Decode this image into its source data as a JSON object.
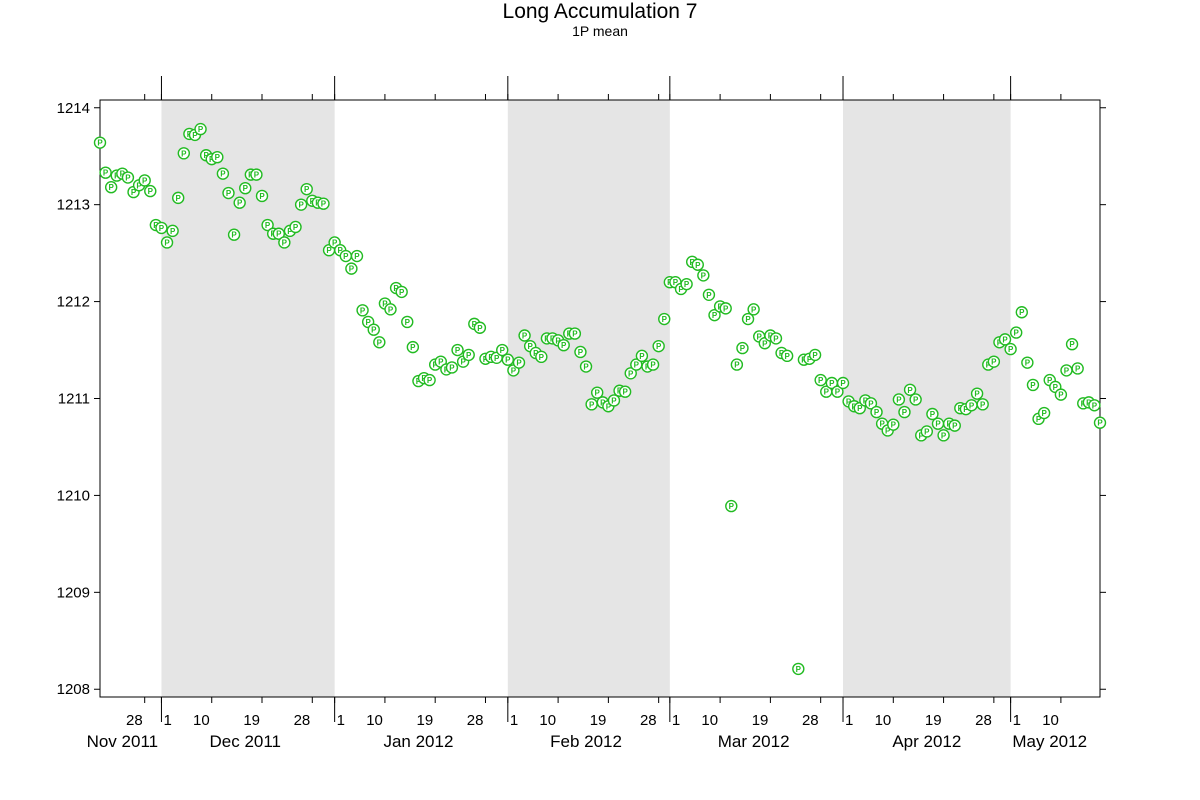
{
  "chart_data": {
    "type": "scatter",
    "title": "Long Accumulation 7",
    "subtitle": "1P mean",
    "xlabel": "",
    "ylabel": "",
    "xlim": [
      "2011-11-20",
      "2012-05-17"
    ],
    "ylim": [
      1207.92,
      1214.08
    ],
    "yticks": [
      1208,
      1209,
      1210,
      1211,
      1212,
      1213,
      1214
    ],
    "x_day_ticks": [
      "2011-11-28",
      "2011-12-01",
      "2011-12-10",
      "2011-12-19",
      "2011-12-28",
      "2012-01-01",
      "2012-01-10",
      "2012-01-19",
      "2012-01-28",
      "2012-02-01",
      "2012-02-10",
      "2012-02-19",
      "2012-02-28",
      "2012-03-01",
      "2012-03-10",
      "2012-03-19",
      "2012-03-28",
      "2012-04-01",
      "2012-04-10",
      "2012-04-19",
      "2012-04-28",
      "2012-05-01",
      "2012-05-10"
    ],
    "month_labels": [
      {
        "date": "2011-11-24",
        "label": "Nov 2011"
      },
      {
        "date": "2011-12-16",
        "label": "Dec 2011"
      },
      {
        "date": "2012-01-16",
        "label": "Jan 2012"
      },
      {
        "date": "2012-02-15",
        "label": "Feb 2012"
      },
      {
        "date": "2012-03-16",
        "label": "Mar 2012"
      },
      {
        "date": "2012-04-16",
        "label": "Apr 2012"
      },
      {
        "date": "2012-05-08",
        "label": "May 2012"
      }
    ],
    "shaded_months": [
      [
        "2011-12-01",
        "2012-01-01"
      ],
      [
        "2012-02-01",
        "2012-03-01"
      ],
      [
        "2012-04-01",
        "2012-05-01"
      ]
    ],
    "grid": false,
    "colors": {
      "marker": "#22bb22",
      "shade": "#e5e5e5",
      "axis": "#000000"
    },
    "series": [
      {
        "marker_label": "P",
        "points": [
          [
            "2011-11-20",
            1213.64
          ],
          [
            "2011-11-21",
            1213.33
          ],
          [
            "2011-11-22",
            1213.18
          ],
          [
            "2011-11-23",
            1213.3
          ],
          [
            "2011-11-24",
            1213.32
          ],
          [
            "2011-11-25",
            1213.28
          ],
          [
            "2011-11-26",
            1213.13
          ],
          [
            "2011-11-27",
            1213.2
          ],
          [
            "2011-11-28",
            1213.25
          ],
          [
            "2011-11-29",
            1213.14
          ],
          [
            "2011-11-30",
            1212.79
          ],
          [
            "2011-12-01",
            1212.76
          ],
          [
            "2011-12-02",
            1212.61
          ],
          [
            "2011-12-03",
            1212.73
          ],
          [
            "2011-12-04",
            1213.07
          ],
          [
            "2011-12-05",
            1213.53
          ],
          [
            "2011-12-06",
            1213.73
          ],
          [
            "2011-12-07",
            1213.72
          ],
          [
            "2011-12-08",
            1213.78
          ],
          [
            "2011-12-09",
            1213.51
          ],
          [
            "2011-12-10",
            1213.47
          ],
          [
            "2011-12-11",
            1213.49
          ],
          [
            "2011-12-12",
            1213.32
          ],
          [
            "2011-12-13",
            1213.12
          ],
          [
            "2011-12-14",
            1212.69
          ],
          [
            "2011-12-15",
            1213.02
          ],
          [
            "2011-12-16",
            1213.17
          ],
          [
            "2011-12-17",
            1213.31
          ],
          [
            "2011-12-18",
            1213.31
          ],
          [
            "2011-12-19",
            1213.09
          ],
          [
            "2011-12-20",
            1212.79
          ],
          [
            "2011-12-21",
            1212.7
          ],
          [
            "2011-12-22",
            1212.7
          ],
          [
            "2011-12-23",
            1212.61
          ],
          [
            "2011-12-24",
            1212.73
          ],
          [
            "2011-12-25",
            1212.77
          ],
          [
            "2011-12-26",
            1213.0
          ],
          [
            "2011-12-27",
            1213.16
          ],
          [
            "2011-12-28",
            1213.04
          ],
          [
            "2011-12-29",
            1213.02
          ],
          [
            "2011-12-30",
            1213.01
          ],
          [
            "2011-12-31",
            1212.53
          ],
          [
            "2012-01-01",
            1212.61
          ],
          [
            "2012-01-02",
            1212.53
          ],
          [
            "2012-01-03",
            1212.47
          ],
          [
            "2012-01-04",
            1212.34
          ],
          [
            "2012-01-05",
            1212.47
          ],
          [
            "2012-01-06",
            1211.91
          ],
          [
            "2012-01-07",
            1211.79
          ],
          [
            "2012-01-08",
            1211.71
          ],
          [
            "2012-01-09",
            1211.58
          ],
          [
            "2012-01-10",
            1211.98
          ],
          [
            "2012-01-11",
            1211.92
          ],
          [
            "2012-01-12",
            1212.14
          ],
          [
            "2012-01-13",
            1212.1
          ],
          [
            "2012-01-14",
            1211.79
          ],
          [
            "2012-01-15",
            1211.53
          ],
          [
            "2012-01-16",
            1211.18
          ],
          [
            "2012-01-17",
            1211.21
          ],
          [
            "2012-01-18",
            1211.19
          ],
          [
            "2012-01-19",
            1211.35
          ],
          [
            "2012-01-20",
            1211.38
          ],
          [
            "2012-01-21",
            1211.3
          ],
          [
            "2012-01-22",
            1211.32
          ],
          [
            "2012-01-23",
            1211.5
          ],
          [
            "2012-01-24",
            1211.38
          ],
          [
            "2012-01-25",
            1211.45
          ],
          [
            "2012-01-26",
            1211.77
          ],
          [
            "2012-01-27",
            1211.73
          ],
          [
            "2012-01-28",
            1211.41
          ],
          [
            "2012-01-29",
            1211.43
          ],
          [
            "2012-01-30",
            1211.42
          ],
          [
            "2012-01-31",
            1211.5
          ],
          [
            "2012-02-01",
            1211.4
          ],
          [
            "2012-02-02",
            1211.29
          ],
          [
            "2012-02-03",
            1211.37
          ],
          [
            "2012-02-04",
            1211.65
          ],
          [
            "2012-02-05",
            1211.54
          ],
          [
            "2012-02-06",
            1211.47
          ],
          [
            "2012-02-07",
            1211.43
          ],
          [
            "2012-02-08",
            1211.62
          ],
          [
            "2012-02-09",
            1211.62
          ],
          [
            "2012-02-10",
            1211.6
          ],
          [
            "2012-02-11",
            1211.55
          ],
          [
            "2012-02-12",
            1211.67
          ],
          [
            "2012-02-13",
            1211.67
          ],
          [
            "2012-02-14",
            1211.48
          ],
          [
            "2012-02-15",
            1211.33
          ],
          [
            "2012-02-16",
            1210.94
          ],
          [
            "2012-02-17",
            1211.06
          ],
          [
            "2012-02-18",
            1210.96
          ],
          [
            "2012-02-19",
            1210.92
          ],
          [
            "2012-02-20",
            1210.98
          ],
          [
            "2012-02-21",
            1211.08
          ],
          [
            "2012-02-22",
            1211.07
          ],
          [
            "2012-02-23",
            1211.26
          ],
          [
            "2012-02-24",
            1211.35
          ],
          [
            "2012-02-25",
            1211.44
          ],
          [
            "2012-02-26",
            1211.33
          ],
          [
            "2012-02-27",
            1211.35
          ],
          [
            "2012-02-28",
            1211.54
          ],
          [
            "2012-02-29",
            1211.82
          ],
          [
            "2012-03-01",
            1212.2
          ],
          [
            "2012-03-02",
            1212.2
          ],
          [
            "2012-03-03",
            1212.13
          ],
          [
            "2012-03-04",
            1212.18
          ],
          [
            "2012-03-05",
            1212.41
          ],
          [
            "2012-03-06",
            1212.38
          ],
          [
            "2012-03-07",
            1212.27
          ],
          [
            "2012-03-08",
            1212.07
          ],
          [
            "2012-03-09",
            1211.86
          ],
          [
            "2012-03-10",
            1211.95
          ],
          [
            "2012-03-11",
            1211.93
          ],
          [
            "2012-03-12",
            1209.89
          ],
          [
            "2012-03-13",
            1211.35
          ],
          [
            "2012-03-14",
            1211.52
          ],
          [
            "2012-03-15",
            1211.82
          ],
          [
            "2012-03-16",
            1211.92
          ],
          [
            "2012-03-17",
            1211.64
          ],
          [
            "2012-03-18",
            1211.57
          ],
          [
            "2012-03-19",
            1211.65
          ],
          [
            "2012-03-20",
            1211.62
          ],
          [
            "2012-03-21",
            1211.47
          ],
          [
            "2012-03-22",
            1211.44
          ],
          [
            "2012-03-24",
            1208.21
          ],
          [
            "2012-03-25",
            1211.4
          ],
          [
            "2012-03-26",
            1211.41
          ],
          [
            "2012-03-27",
            1211.45
          ],
          [
            "2012-03-28",
            1211.19
          ],
          [
            "2012-03-29",
            1211.07
          ],
          [
            "2012-03-30",
            1211.16
          ],
          [
            "2012-03-31",
            1211.07
          ],
          [
            "2012-04-01",
            1211.16
          ],
          [
            "2012-04-02",
            1210.97
          ],
          [
            "2012-04-03",
            1210.92
          ],
          [
            "2012-04-04",
            1210.9
          ],
          [
            "2012-04-05",
            1210.98
          ],
          [
            "2012-04-06",
            1210.95
          ],
          [
            "2012-04-07",
            1210.86
          ],
          [
            "2012-04-08",
            1210.74
          ],
          [
            "2012-04-09",
            1210.67
          ],
          [
            "2012-04-10",
            1210.73
          ],
          [
            "2012-04-11",
            1210.99
          ],
          [
            "2012-04-12",
            1210.86
          ],
          [
            "2012-04-13",
            1211.09
          ],
          [
            "2012-04-14",
            1210.99
          ],
          [
            "2012-04-15",
            1210.62
          ],
          [
            "2012-04-16",
            1210.66
          ],
          [
            "2012-04-17",
            1210.84
          ],
          [
            "2012-04-18",
            1210.74
          ],
          [
            "2012-04-19",
            1210.62
          ],
          [
            "2012-04-20",
            1210.74
          ],
          [
            "2012-04-21",
            1210.72
          ],
          [
            "2012-04-22",
            1210.9
          ],
          [
            "2012-04-23",
            1210.89
          ],
          [
            "2012-04-24",
            1210.93
          ],
          [
            "2012-04-25",
            1211.05
          ],
          [
            "2012-04-26",
            1210.94
          ],
          [
            "2012-04-27",
            1211.35
          ],
          [
            "2012-04-28",
            1211.38
          ],
          [
            "2012-04-29",
            1211.58
          ],
          [
            "2012-04-30",
            1211.61
          ],
          [
            "2012-05-01",
            1211.51
          ],
          [
            "2012-05-02",
            1211.68
          ],
          [
            "2012-05-03",
            1211.89
          ],
          [
            "2012-05-04",
            1211.37
          ],
          [
            "2012-05-05",
            1211.14
          ],
          [
            "2012-05-06",
            1210.79
          ],
          [
            "2012-05-07",
            1210.85
          ],
          [
            "2012-05-08",
            1211.19
          ],
          [
            "2012-05-09",
            1211.12
          ],
          [
            "2012-05-10",
            1211.04
          ],
          [
            "2012-05-11",
            1211.29
          ],
          [
            "2012-05-12",
            1211.56
          ],
          [
            "2012-05-13",
            1211.31
          ],
          [
            "2012-05-14",
            1210.95
          ],
          [
            "2012-05-15",
            1210.96
          ],
          [
            "2012-05-16",
            1210.93
          ],
          [
            "2012-05-17",
            1210.75
          ]
        ]
      }
    ]
  }
}
